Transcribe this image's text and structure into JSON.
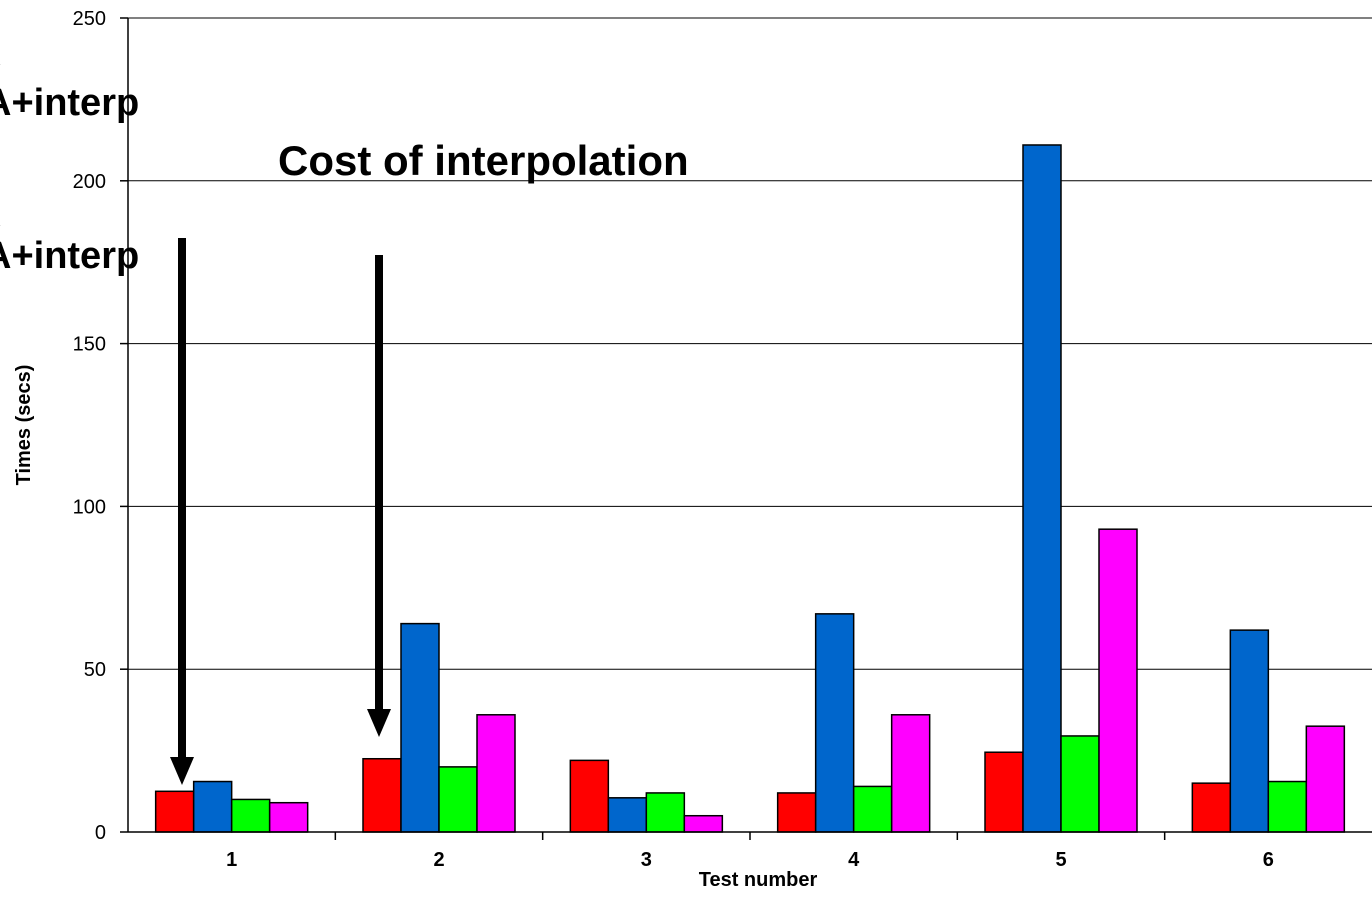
{
  "chart_data": {
    "type": "bar",
    "title": "Cost of interpolation",
    "xlabel": "Test number",
    "ylabel": "Times (secs)",
    "categories": [
      "1",
      "2",
      "3",
      "4",
      "5",
      "6"
    ],
    "ylim": [
      0,
      250
    ],
    "yticks": [
      "0",
      "50",
      "100",
      "150",
      "200",
      "250"
    ],
    "grid": true,
    "series": [
      {
        "color": "#ff0000",
        "values": [
          12.5,
          22.5,
          22,
          12,
          24.5,
          15
        ]
      },
      {
        "color": "#0066cc",
        "values": [
          15.5,
          64,
          10.5,
          67,
          211,
          62
        ]
      },
      {
        "color": "#00ff00",
        "values": [
          10,
          20,
          12,
          14,
          29.5,
          15.5
        ]
      },
      {
        "color": "#ff00ff",
        "values": [
          9,
          36,
          5,
          36,
          93,
          32.5
        ]
      }
    ],
    "legend_fragments": [
      "\\",
      "A+interp",
      "\\",
      "A+interp"
    ]
  }
}
